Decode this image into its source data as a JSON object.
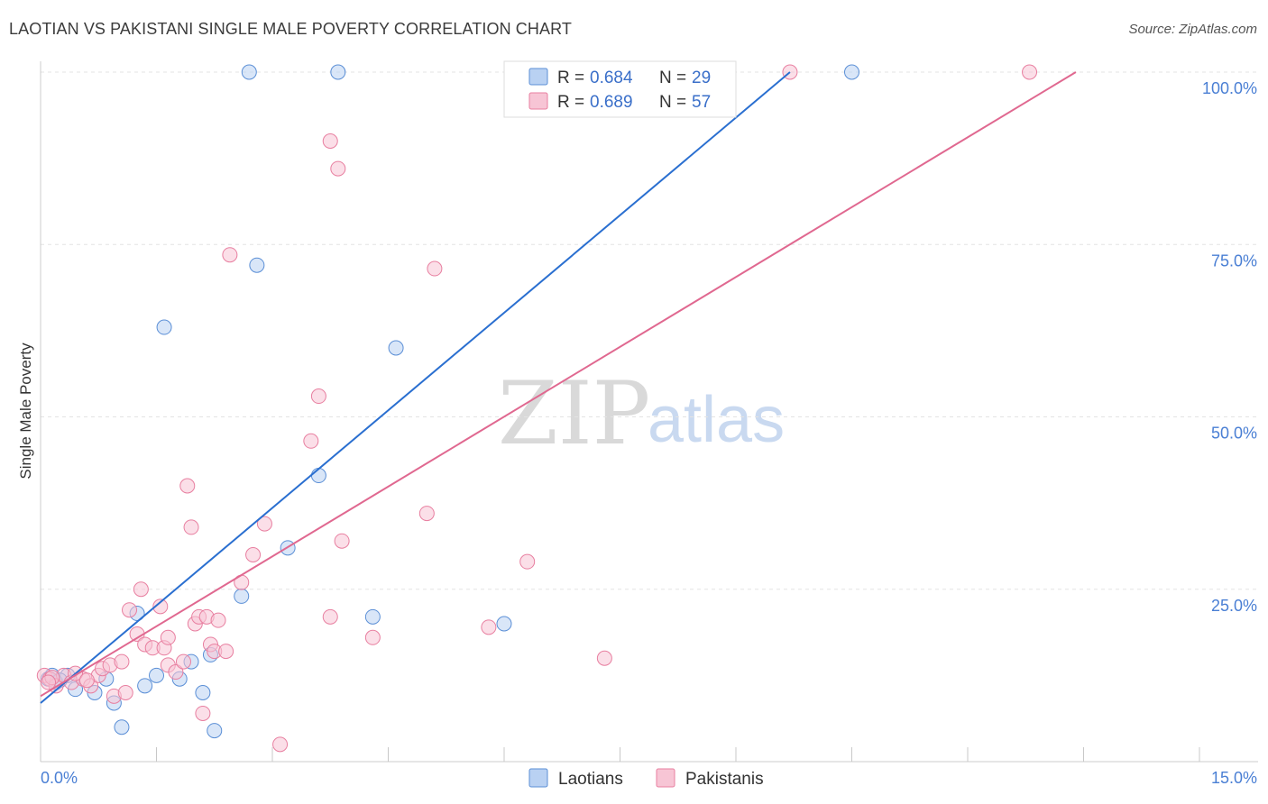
{
  "title": "LAOTIAN VS PAKISTANI SINGLE MALE POVERTY CORRELATION CHART",
  "source": "Source: ZipAtlas.com",
  "watermark": {
    "zip": "ZIP",
    "atlas": "atlas"
  },
  "colors": {
    "laotian": "#5b8fd6",
    "laotian_fill": "#b9d1f2",
    "laotian_line": "#2a6fd0",
    "pakistani": "#e87fa0",
    "pakistani_fill": "#f7c5d5",
    "pakistani_line": "#e06890",
    "axis_text": "#4a7fd4"
  },
  "legend": {
    "rows": [
      {
        "r_label": "R = ",
        "r_value": "0.684",
        "n_label": "N = ",
        "n_value": "29"
      },
      {
        "r_label": "R = ",
        "r_value": "0.689",
        "n_label": "N = ",
        "n_value": "57"
      }
    ]
  },
  "bottom_legend": {
    "laotian": "Laotians",
    "pakistani": "Pakistanis"
  },
  "chart_data": {
    "type": "scatter",
    "title": "LAOTIAN VS PAKISTANI SINGLE MALE POVERTY CORRELATION CHART",
    "xlabel": "",
    "ylabel": "Single Male Poverty",
    "xlim": [
      0,
      15
    ],
    "ylim": [
      0,
      100
    ],
    "x_tick_labels": [
      "0.0%",
      "15.0%"
    ],
    "y_ticks": [
      25,
      50,
      75,
      100
    ],
    "y_tick_labels": [
      "25.0%",
      "50.0%",
      "75.0%",
      "100.0%"
    ],
    "grid": true,
    "series": [
      {
        "name": "Laotians",
        "R": 0.684,
        "N": 29,
        "trend": {
          "x": [
            0,
            9.7
          ],
          "y": [
            8.5,
            100
          ]
        },
        "points": [
          {
            "x": 0.1,
            "y": 12.0
          },
          {
            "x": 0.2,
            "y": 11.5
          },
          {
            "x": 0.35,
            "y": 12.5
          },
          {
            "x": 0.45,
            "y": 10.5
          },
          {
            "x": 0.7,
            "y": 10.0
          },
          {
            "x": 0.85,
            "y": 12.0
          },
          {
            "x": 0.95,
            "y": 8.5
          },
          {
            "x": 1.05,
            "y": 5.0
          },
          {
            "x": 1.25,
            "y": 21.5
          },
          {
            "x": 1.35,
            "y": 11.0
          },
          {
            "x": 1.5,
            "y": 12.5
          },
          {
            "x": 1.6,
            "y": 63.0
          },
          {
            "x": 1.8,
            "y": 12.0
          },
          {
            "x": 1.95,
            "y": 14.5
          },
          {
            "x": 2.1,
            "y": 10.0
          },
          {
            "x": 2.2,
            "y": 15.5
          },
          {
            "x": 2.25,
            "y": 4.5
          },
          {
            "x": 2.6,
            "y": 24.0
          },
          {
            "x": 2.8,
            "y": 72.0
          },
          {
            "x": 3.2,
            "y": 31.0
          },
          {
            "x": 3.6,
            "y": 41.5
          },
          {
            "x": 4.3,
            "y": 21.0
          },
          {
            "x": 4.6,
            "y": 60.0
          },
          {
            "x": 6.0,
            "y": 20.0
          },
          {
            "x": 2.7,
            "y": 100.0
          },
          {
            "x": 3.85,
            "y": 100.0
          },
          {
            "x": 10.5,
            "y": 100.0
          },
          {
            "x": 0.15,
            "y": 12.5
          },
          {
            "x": 0.25,
            "y": 11.8
          }
        ]
      },
      {
        "name": "Pakistanis",
        "R": 0.689,
        "N": 57,
        "trend": {
          "x": [
            0,
            13.4
          ],
          "y": [
            9.5,
            100
          ]
        },
        "points": [
          {
            "x": 0.05,
            "y": 12.5
          },
          {
            "x": 0.12,
            "y": 12.0
          },
          {
            "x": 0.2,
            "y": 11.0
          },
          {
            "x": 0.3,
            "y": 12.5
          },
          {
            "x": 0.4,
            "y": 11.5
          },
          {
            "x": 0.55,
            "y": 12.0
          },
          {
            "x": 0.65,
            "y": 11.0
          },
          {
            "x": 0.75,
            "y": 12.5
          },
          {
            "x": 0.8,
            "y": 13.5
          },
          {
            "x": 0.9,
            "y": 14.0
          },
          {
            "x": 0.95,
            "y": 9.5
          },
          {
            "x": 1.05,
            "y": 14.5
          },
          {
            "x": 1.1,
            "y": 10.0
          },
          {
            "x": 1.15,
            "y": 22.0
          },
          {
            "x": 1.25,
            "y": 18.5
          },
          {
            "x": 1.3,
            "y": 25.0
          },
          {
            "x": 1.35,
            "y": 17.0
          },
          {
            "x": 1.45,
            "y": 16.5
          },
          {
            "x": 1.55,
            "y": 22.5
          },
          {
            "x": 1.6,
            "y": 16.5
          },
          {
            "x": 1.65,
            "y": 18.0
          },
          {
            "x": 1.65,
            "y": 14.0
          },
          {
            "x": 1.75,
            "y": 13.0
          },
          {
            "x": 1.85,
            "y": 14.5
          },
          {
            "x": 1.9,
            "y": 40.0
          },
          {
            "x": 1.95,
            "y": 34.0
          },
          {
            "x": 2.0,
            "y": 20.0
          },
          {
            "x": 2.05,
            "y": 21.0
          },
          {
            "x": 2.1,
            "y": 7.0
          },
          {
            "x": 2.15,
            "y": 21.0
          },
          {
            "x": 2.2,
            "y": 17.0
          },
          {
            "x": 2.25,
            "y": 16.0
          },
          {
            "x": 2.3,
            "y": 20.5
          },
          {
            "x": 2.4,
            "y": 16.0
          },
          {
            "x": 2.45,
            "y": 73.5
          },
          {
            "x": 2.6,
            "y": 26.0
          },
          {
            "x": 2.75,
            "y": 30.0
          },
          {
            "x": 2.9,
            "y": 34.5
          },
          {
            "x": 3.1,
            "y": 2.5
          },
          {
            "x": 3.5,
            "y": 46.5
          },
          {
            "x": 3.6,
            "y": 53.0
          },
          {
            "x": 3.75,
            "y": 90.0
          },
          {
            "x": 3.75,
            "y": 21.0
          },
          {
            "x": 3.85,
            "y": 86.0
          },
          {
            "x": 3.9,
            "y": 32.0
          },
          {
            "x": 4.3,
            "y": 18.0
          },
          {
            "x": 5.0,
            "y": 36.0
          },
          {
            "x": 5.1,
            "y": 71.5
          },
          {
            "x": 5.8,
            "y": 19.5
          },
          {
            "x": 6.3,
            "y": 29.0
          },
          {
            "x": 7.3,
            "y": 15.0
          },
          {
            "x": 9.7,
            "y": 100.0
          },
          {
            "x": 12.8,
            "y": 100.0
          },
          {
            "x": 0.15,
            "y": 12.2
          },
          {
            "x": 0.1,
            "y": 11.5
          },
          {
            "x": 0.45,
            "y": 12.8
          },
          {
            "x": 0.6,
            "y": 11.8
          }
        ]
      }
    ]
  }
}
